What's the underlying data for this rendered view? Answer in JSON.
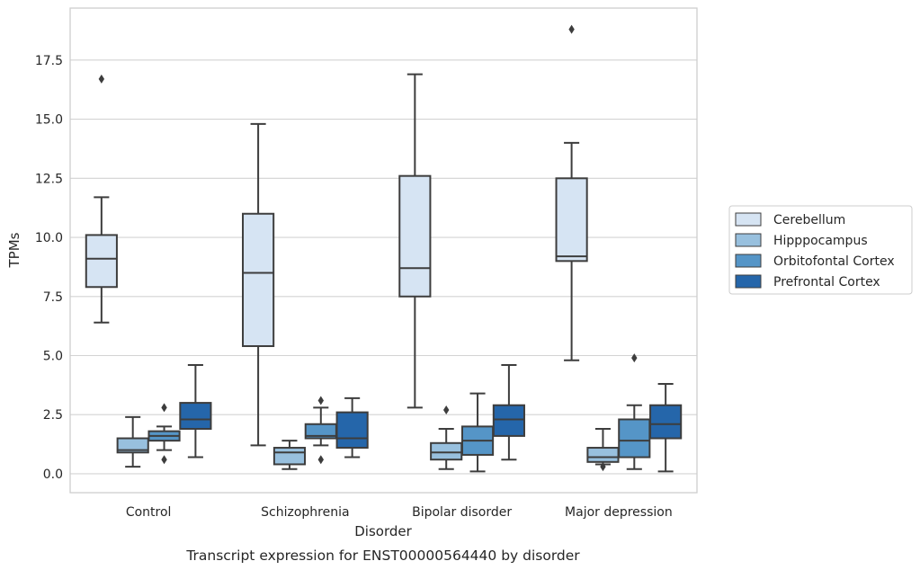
{
  "chart_data": {
    "type": "box",
    "title": "",
    "caption": "Transcript expression for ENST00000564440 by disorder",
    "xlabel": "Disorder",
    "ylabel": "TPMs",
    "ylim": [
      -0.8,
      19.7
    ],
    "yticks": [
      "0.0",
      "2.5",
      "5.0",
      "7.5",
      "10.0",
      "12.5",
      "15.0",
      "17.5"
    ],
    "ytick_values": [
      0,
      2.5,
      5,
      7.5,
      10,
      12.5,
      15,
      17.5
    ],
    "grid": "horizontal",
    "legend_position": "right",
    "categories": [
      "Control",
      "Schizophrenia",
      "Bipolar disorder",
      "Major depression"
    ],
    "series": [
      {
        "name": "Cerebellum",
        "color": "#d6e4f3",
        "boxes": [
          {
            "whislo": 6.4,
            "q1": 7.9,
            "med": 9.1,
            "q3": 10.1,
            "whishi": 11.7,
            "fliers": [
              16.7
            ]
          },
          {
            "whislo": 1.2,
            "q1": 5.4,
            "med": 8.5,
            "q3": 11.0,
            "whishi": 14.8,
            "fliers": []
          },
          {
            "whislo": 2.8,
            "q1": 7.5,
            "med": 8.7,
            "q3": 12.6,
            "whishi": 16.9,
            "fliers": []
          },
          {
            "whislo": 4.8,
            "q1": 9.0,
            "med": 9.2,
            "q3": 12.5,
            "whishi": 14.0,
            "fliers": [
              18.8
            ]
          }
        ]
      },
      {
        "name": "Hipppocampus",
        "color": "#98c0de",
        "boxes": [
          {
            "whislo": 0.3,
            "q1": 0.9,
            "med": 1.0,
            "q3": 1.5,
            "whishi": 2.4,
            "fliers": []
          },
          {
            "whislo": 0.2,
            "q1": 0.4,
            "med": 0.9,
            "q3": 1.1,
            "whishi": 1.4,
            "fliers": []
          },
          {
            "whislo": 0.2,
            "q1": 0.6,
            "med": 0.9,
            "q3": 1.3,
            "whishi": 1.9,
            "fliers": [
              2.7
            ]
          },
          {
            "whislo": 0.4,
            "q1": 0.5,
            "med": 0.7,
            "q3": 1.1,
            "whishi": 1.9,
            "fliers": [
              0.3
            ]
          }
        ]
      },
      {
        "name": "Orbitofontal Cortex",
        "color": "#5595c7",
        "boxes": [
          {
            "whislo": 1.0,
            "q1": 1.4,
            "med": 1.6,
            "q3": 1.8,
            "whishi": 2.0,
            "fliers": [
              2.8,
              0.6
            ]
          },
          {
            "whislo": 1.2,
            "q1": 1.5,
            "med": 1.6,
            "q3": 2.1,
            "whishi": 2.8,
            "fliers": [
              3.1,
              0.6
            ]
          },
          {
            "whislo": 0.1,
            "q1": 0.8,
            "med": 1.4,
            "q3": 2.0,
            "whishi": 3.4,
            "fliers": []
          },
          {
            "whislo": 0.2,
            "q1": 0.7,
            "med": 1.4,
            "q3": 2.3,
            "whishi": 2.9,
            "fliers": [
              4.9
            ]
          }
        ]
      },
      {
        "name": "Prefrontal Cortex",
        "color": "#2566aa",
        "boxes": [
          {
            "whislo": 0.7,
            "q1": 1.9,
            "med": 2.3,
            "q3": 3.0,
            "whishi": 4.6,
            "fliers": []
          },
          {
            "whislo": 0.7,
            "q1": 1.1,
            "med": 1.5,
            "q3": 2.6,
            "whishi": 3.2,
            "fliers": []
          },
          {
            "whislo": 0.6,
            "q1": 1.6,
            "med": 2.3,
            "q3": 2.9,
            "whishi": 4.6,
            "fliers": []
          },
          {
            "whislo": 0.1,
            "q1": 1.5,
            "med": 2.1,
            "q3": 2.9,
            "whishi": 3.8,
            "fliers": []
          }
        ]
      }
    ]
  }
}
